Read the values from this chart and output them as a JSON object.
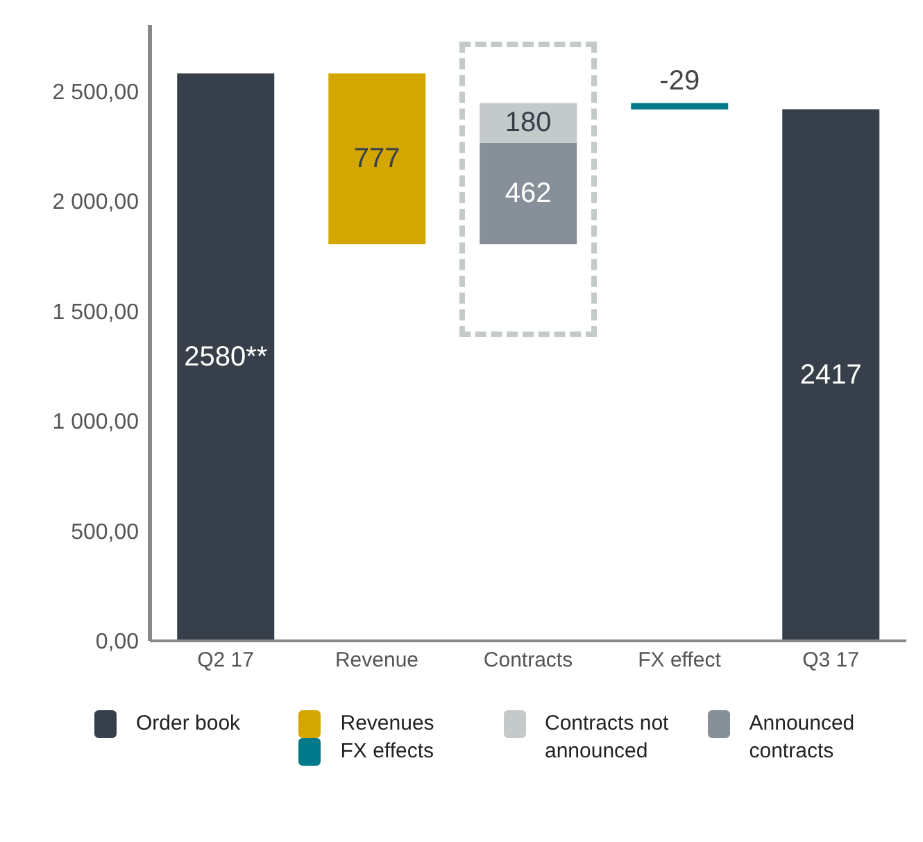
{
  "chart_data": {
    "type": "bar",
    "stacked": true,
    "categories": [
      "Q2 17",
      "Revenue",
      "Contracts",
      "FX effect",
      "Q3 17"
    ],
    "series": [
      {
        "name": "Order book",
        "color": "#37404a",
        "values": [
          2580,
          null,
          null,
          null,
          2417
        ],
        "base": [
          0,
          null,
          null,
          null,
          0
        ],
        "value_labels": [
          "2580**",
          null,
          null,
          null,
          "2417"
        ]
      },
      {
        "name": "Revenues",
        "color": "#d4a600",
        "values": [
          null,
          777,
          null,
          null,
          null
        ],
        "base": [
          null,
          1803,
          null,
          null,
          null
        ],
        "value_labels": [
          null,
          "777",
          null,
          null,
          null
        ]
      },
      {
        "name": "Announced contracts",
        "color": "#878f98",
        "values": [
          null,
          null,
          462,
          null,
          null
        ],
        "base": [
          null,
          null,
          1803,
          null,
          null
        ],
        "value_labels": [
          null,
          null,
          "462",
          null,
          null
        ]
      },
      {
        "name": "Contracts not announced",
        "color": "#c4c9c9",
        "values": [
          null,
          null,
          180,
          null,
          null
        ],
        "base": [
          null,
          null,
          null,
          null,
          null
        ],
        "value_labels": [
          null,
          null,
          "180",
          null,
          null
        ]
      },
      {
        "name": "FX effects",
        "color": "#007a8a",
        "values": [
          null,
          null,
          null,
          -29,
          null
        ],
        "base": [
          null,
          null,
          null,
          2445,
          null
        ],
        "value_labels": [
          null,
          null,
          null,
          "-29",
          null
        ]
      }
    ],
    "ylim": [
      0,
      2800
    ],
    "yticks": [
      {
        "value": 0,
        "label": "0,00"
      },
      {
        "value": 500,
        "label": "500,00"
      },
      {
        "value": 1000,
        "label": "1 000,00"
      },
      {
        "value": 1500,
        "label": "1 500,00"
      },
      {
        "value": 2000,
        "label": "2 000,00"
      },
      {
        "value": 2500,
        "label": "2 500,00"
      }
    ],
    "grid": false,
    "legend": "bottom"
  }
}
